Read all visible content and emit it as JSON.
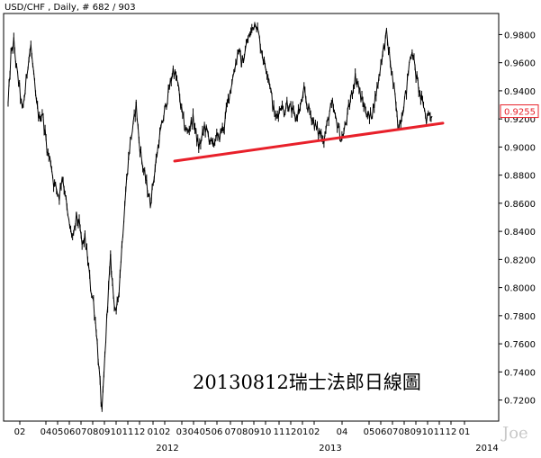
{
  "header": {
    "title": "USD/CHF , Daily, # 682 / 903"
  },
  "annotation": "20130812瑞士法郎日線圖",
  "watermark": "Joe",
  "chart_data": {
    "type": "line",
    "instrument": "USD/CHF",
    "timeframe": "Daily",
    "y_ticks": [
      "0.9800",
      "0.9600",
      "0.9400",
      "0.9200",
      "0.9000",
      "0.8800",
      "0.8600",
      "0.8400",
      "0.8200",
      "0.8000",
      "0.7800",
      "0.7600",
      "0.7400",
      "0.7200"
    ],
    "x_month_labels": [
      "02",
      "04",
      "05",
      "06",
      "07",
      "08",
      "09",
      "10",
      "11",
      "12",
      "01",
      "02",
      "03",
      "04",
      "05",
      "06",
      "07",
      "08",
      "09",
      "10",
      "11",
      "12",
      "01",
      "02",
      "04",
      "05",
      "06",
      "07",
      "08",
      "09",
      "10",
      "11",
      "12",
      "01"
    ],
    "x_year_labels": [
      "2012",
      "2013",
      "2014"
    ],
    "ylim": [
      0.705,
      0.995
    ],
    "current_price": "0.9255",
    "colors": {
      "price_line": "#000000",
      "trendline": "#e8202a",
      "price_label_border": "#e8202a",
      "price_label_text": "#e8202a",
      "frame": "#000000",
      "background": "#ffffff"
    },
    "trendline": {
      "start": [
        "2012-01",
        0.89
      ],
      "end": [
        "2013-08",
        0.917
      ],
      "label": ""
    },
    "series": [
      {
        "values": [
          0.93,
          0.965,
          0.975,
          0.955,
          0.942,
          0.925,
          0.94,
          0.96,
          0.972,
          0.95,
          0.93,
          0.92,
          0.925,
          0.91,
          0.895,
          0.89,
          0.875,
          0.87,
          0.865,
          0.88,
          0.868,
          0.85,
          0.84,
          0.835,
          0.85,
          0.845,
          0.83,
          0.835,
          0.82,
          0.8,
          0.79,
          0.77,
          0.74,
          0.71,
          0.75,
          0.79,
          0.82,
          0.795,
          0.78,
          0.8,
          0.83,
          0.86,
          0.885,
          0.905,
          0.915,
          0.93,
          0.905,
          0.89,
          0.88,
          0.87,
          0.86,
          0.875,
          0.89,
          0.905,
          0.915,
          0.925,
          0.935,
          0.945,
          0.955,
          0.95,
          0.94,
          0.925,
          0.915,
          0.91,
          0.915,
          0.92,
          0.91,
          0.9,
          0.905,
          0.915,
          0.91,
          0.905,
          0.9,
          0.908,
          0.905,
          0.912,
          0.915,
          0.93,
          0.94,
          0.95,
          0.96,
          0.97,
          0.96,
          0.965,
          0.975,
          0.98,
          0.985,
          0.99,
          0.98,
          0.97,
          0.96,
          0.955,
          0.945,
          0.93,
          0.92,
          0.925,
          0.93,
          0.925,
          0.932,
          0.928,
          0.925,
          0.92,
          0.925,
          0.93,
          0.94,
          0.93,
          0.925,
          0.92,
          0.915,
          0.91,
          0.91,
          0.905,
          0.915,
          0.925,
          0.93,
          0.92,
          0.915,
          0.905,
          0.91,
          0.92,
          0.93,
          0.94,
          0.95,
          0.945,
          0.935,
          0.93,
          0.925,
          0.92,
          0.925,
          0.935,
          0.945,
          0.96,
          0.97,
          0.98,
          0.965,
          0.95,
          0.935,
          0.915,
          0.92,
          0.93,
          0.94,
          0.96,
          0.97,
          0.955,
          0.945,
          0.935,
          0.93,
          0.92,
          0.925,
          0.922
        ]
      }
    ]
  }
}
